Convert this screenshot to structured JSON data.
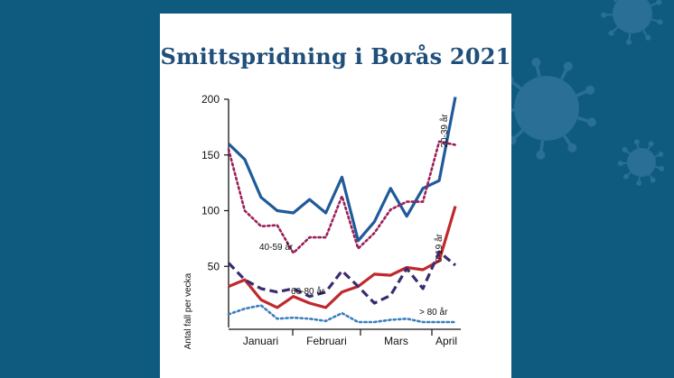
{
  "chart_data": {
    "type": "line",
    "title": "Smittspridning i Borås 2021",
    "ylabel": "Antal fall per vecka",
    "xlabel": "",
    "ylim": [
      0,
      210
    ],
    "yticks": [
      50,
      100,
      150,
      200
    ],
    "months": [
      "Januari",
      "Februari",
      "Mars",
      "April"
    ],
    "weeks": [
      1,
      2,
      3,
      4,
      5,
      6,
      7,
      8,
      9,
      10,
      11,
      12,
      13,
      14,
      15
    ],
    "series": [
      {
        "name": "20-39 år",
        "color": "#1f5a9a",
        "style": "solid",
        "values": [
          160,
          146,
          112,
          100,
          98,
          110,
          98,
          130,
          73,
          90,
          120,
          95,
          120,
          127,
          202
        ]
      },
      {
        "name": "40-59 år",
        "color": "#9a1f5a",
        "style": "dotted",
        "values": [
          155,
          100,
          86,
          87,
          62,
          76,
          76,
          113,
          66,
          80,
          101,
          108,
          108,
          162,
          159
        ]
      },
      {
        "name": "0-19 år",
        "color": "#c0282d",
        "style": "solid",
        "values": [
          32,
          38,
          20,
          13,
          23,
          17,
          13,
          27,
          32,
          43,
          42,
          49,
          47,
          55,
          104
        ]
      },
      {
        "name": "60-80 år",
        "color": "#3a2c6e",
        "style": "dashed",
        "values": [
          53,
          38,
          30,
          27,
          30,
          23,
          27,
          46,
          32,
          17,
          24,
          48,
          30,
          63,
          51
        ]
      },
      {
        "name": "> 80 år",
        "color": "#3a7fc0",
        "style": "dotted",
        "values": [
          7,
          12,
          15,
          3,
          4,
          3,
          1,
          8,
          0,
          0,
          2,
          3,
          0,
          0,
          0
        ]
      }
    ]
  }
}
